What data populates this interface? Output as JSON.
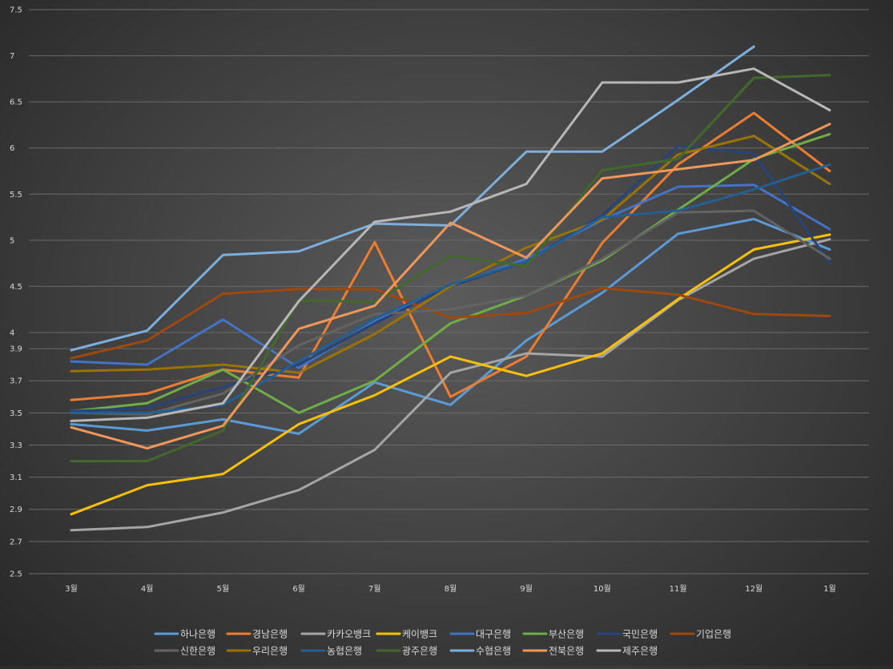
{
  "chart_data": {
    "type": "line",
    "categories": [
      "3월",
      "4월",
      "5월",
      "6월",
      "7월",
      "8월",
      "9월",
      "10월",
      "11월",
      "12월",
      "1월"
    ],
    "y_ticks_upper": [
      "7.5",
      "7",
      "6.5",
      "6",
      "5.5",
      "5",
      "4.5",
      "4"
    ],
    "y_ticks_lower": [
      "3.9",
      "3.7",
      "3.5",
      "3.3",
      "3.1",
      "2.9",
      "2.7",
      "2.5"
    ],
    "upper_ylim": [
      4,
      7.5
    ],
    "lower_ylim": [
      2.5,
      4
    ],
    "grid": true,
    "legend_position": "bottom",
    "series": [
      {
        "name": "하나은행",
        "color": "#5b9bd5",
        "values": [
          3.43,
          3.39,
          3.46,
          3.37,
          3.69,
          3.55,
          3.95,
          4.43,
          5.07,
          5.23,
          4.9
        ]
      },
      {
        "name": "경남은행",
        "color": "#ed7d31",
        "values": [
          3.58,
          3.62,
          3.77,
          3.72,
          4.98,
          3.6,
          3.85,
          4.97,
          5.82,
          6.38,
          5.75
        ]
      },
      {
        "name": "카카오뱅크",
        "color": "#a5a5a5",
        "values": [
          2.77,
          2.79,
          2.88,
          3.02,
          3.27,
          3.75,
          3.87,
          3.85,
          4.35,
          4.8,
          5.01
        ]
      },
      {
        "name": "케이뱅크",
        "color": "#ffc000",
        "values": [
          2.87,
          3.05,
          3.12,
          3.43,
          3.61,
          3.85,
          3.73,
          3.87,
          4.36,
          4.9,
          5.06
        ]
      },
      {
        "name": "대구은행",
        "color": "#4472c4",
        "values": [
          3.82,
          3.8,
          4.14,
          3.78,
          4.12,
          4.5,
          4.8,
          5.22,
          5.58,
          5.6,
          5.12
        ]
      },
      {
        "name": "부산은행",
        "color": "#70ad47",
        "values": [
          3.51,
          3.56,
          3.77,
          3.5,
          3.7,
          4.1,
          4.4,
          4.78,
          5.33,
          5.88,
          6.15
        ]
      },
      {
        "name": "국민은행",
        "color": "#264478",
        "values": [
          3.51,
          3.53,
          3.66,
          3.8,
          4.1,
          4.5,
          4.77,
          5.27,
          6.02,
          5.94,
          4.75
        ]
      },
      {
        "name": "기업은행",
        "color": "#9e480e",
        "values": [
          3.84,
          3.95,
          4.42,
          4.47,
          4.47,
          4.16,
          4.21,
          4.48,
          4.41,
          4.2,
          4.18
        ]
      },
      {
        "name": "신한은행",
        "color": "#636363",
        "values": [
          3.5,
          3.49,
          3.62,
          3.92,
          4.2,
          4.25,
          4.4,
          4.8,
          5.3,
          5.32,
          4.8
        ]
      },
      {
        "name": "우리은행",
        "color": "#997300",
        "values": [
          3.76,
          3.77,
          3.8,
          3.75,
          3.99,
          4.5,
          4.92,
          5.22,
          5.93,
          6.13,
          5.61
        ]
      },
      {
        "name": "농협은행",
        "color": "#255e91",
        "values": [
          3.5,
          3.5,
          3.55,
          3.82,
          4.15,
          4.52,
          4.77,
          5.25,
          5.32,
          5.55,
          5.82
        ]
      },
      {
        "name": "광주은행",
        "color": "#43682b",
        "values": [
          3.2,
          3.2,
          3.39,
          4.35,
          4.33,
          4.83,
          4.72,
          5.76,
          5.88,
          6.76,
          6.79
        ]
      },
      {
        "name": "수협은행",
        "color": "#7cafdd",
        "values": [
          3.89,
          4.02,
          4.84,
          4.88,
          5.18,
          5.16,
          5.96,
          5.96,
          6.52,
          7.1,
          null
        ]
      },
      {
        "name": "전북은행",
        "color": "#f1975a",
        "values": [
          3.41,
          3.28,
          3.42,
          4.04,
          4.29,
          5.19,
          4.81,
          5.67,
          5.77,
          5.87,
          6.26
        ]
      },
      {
        "name": "제주은행",
        "color": "#b7b7b7",
        "values": [
          3.45,
          3.47,
          3.56,
          4.34,
          5.2,
          5.31,
          5.61,
          6.71,
          6.71,
          6.86,
          6.41
        ]
      }
    ]
  }
}
